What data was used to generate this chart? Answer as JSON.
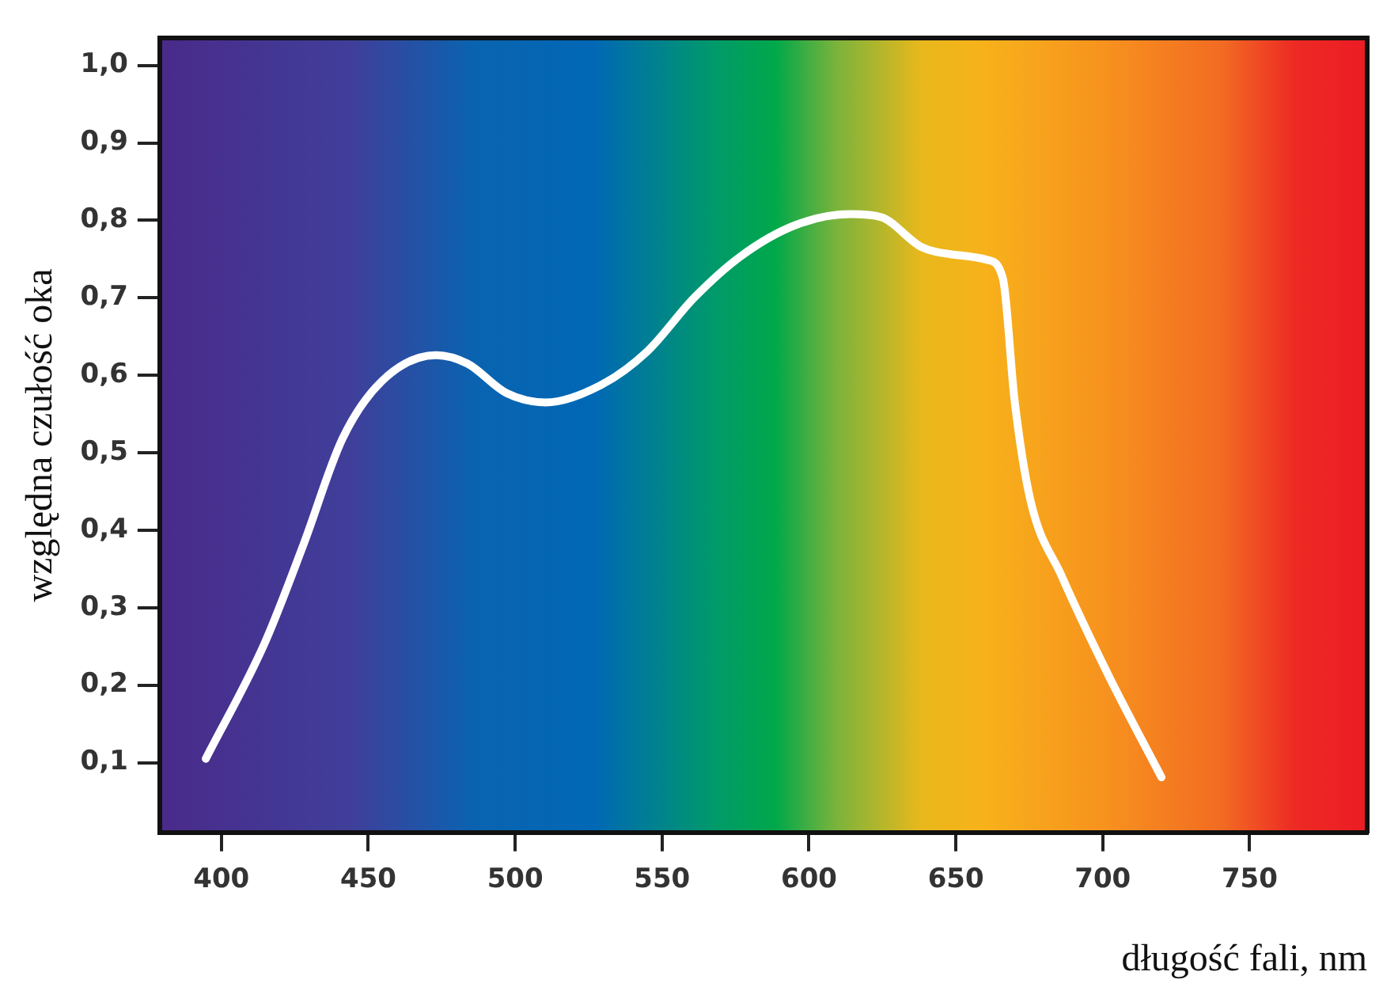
{
  "chart_data": {
    "type": "line",
    "xlabel": "długość fali, nm",
    "ylabel": "względna czułość oka",
    "x": [
      394.7,
      414.6,
      427.9,
      441.2,
      454.5,
      473.1,
      483.8,
      497.1,
      510.4,
      529,
      545,
      560.9,
      576.9,
      595.5,
      614.1,
      624.7,
      638.1,
      648.7,
      660.7,
      666,
      670,
      675.3,
      686,
      701.9,
      720
    ],
    "series": [
      {
        "color": "#ffffff",
        "values": [
          0.105,
          0.253,
          0.381,
          0.518,
          0.592,
          0.626,
          0.615,
          0.577,
          0.565,
          0.587,
          0.631,
          0.7,
          0.754,
          0.794,
          0.808,
          0.804,
          0.766,
          0.756,
          0.749,
          0.725,
          0.567,
          0.44,
          0.341,
          0.213,
          0.081
        ]
      }
    ],
    "xlim": [
      379,
      790
    ],
    "xticks": [
      400,
      450,
      500,
      550,
      600,
      650,
      700,
      750
    ],
    "ylim": [
      0.01,
      1.035
    ],
    "yticks": [
      {
        "value": 0.1,
        "label": "0,1"
      },
      {
        "value": 0.2,
        "label": "0,2"
      },
      {
        "value": 0.3,
        "label": "0,3"
      },
      {
        "value": 0.4,
        "label": "0,4"
      },
      {
        "value": 0.5,
        "label": "0,5"
      },
      {
        "value": 0.6,
        "label": "0,6"
      },
      {
        "value": 0.7,
        "label": "0,7"
      },
      {
        "value": 0.8,
        "label": "0,8"
      },
      {
        "value": 0.9,
        "label": "0,9"
      },
      {
        "value": 1.0,
        "label": "1,0"
      }
    ],
    "grid": false,
    "legend": false,
    "marker": "none",
    "line_style": "solid"
  }
}
